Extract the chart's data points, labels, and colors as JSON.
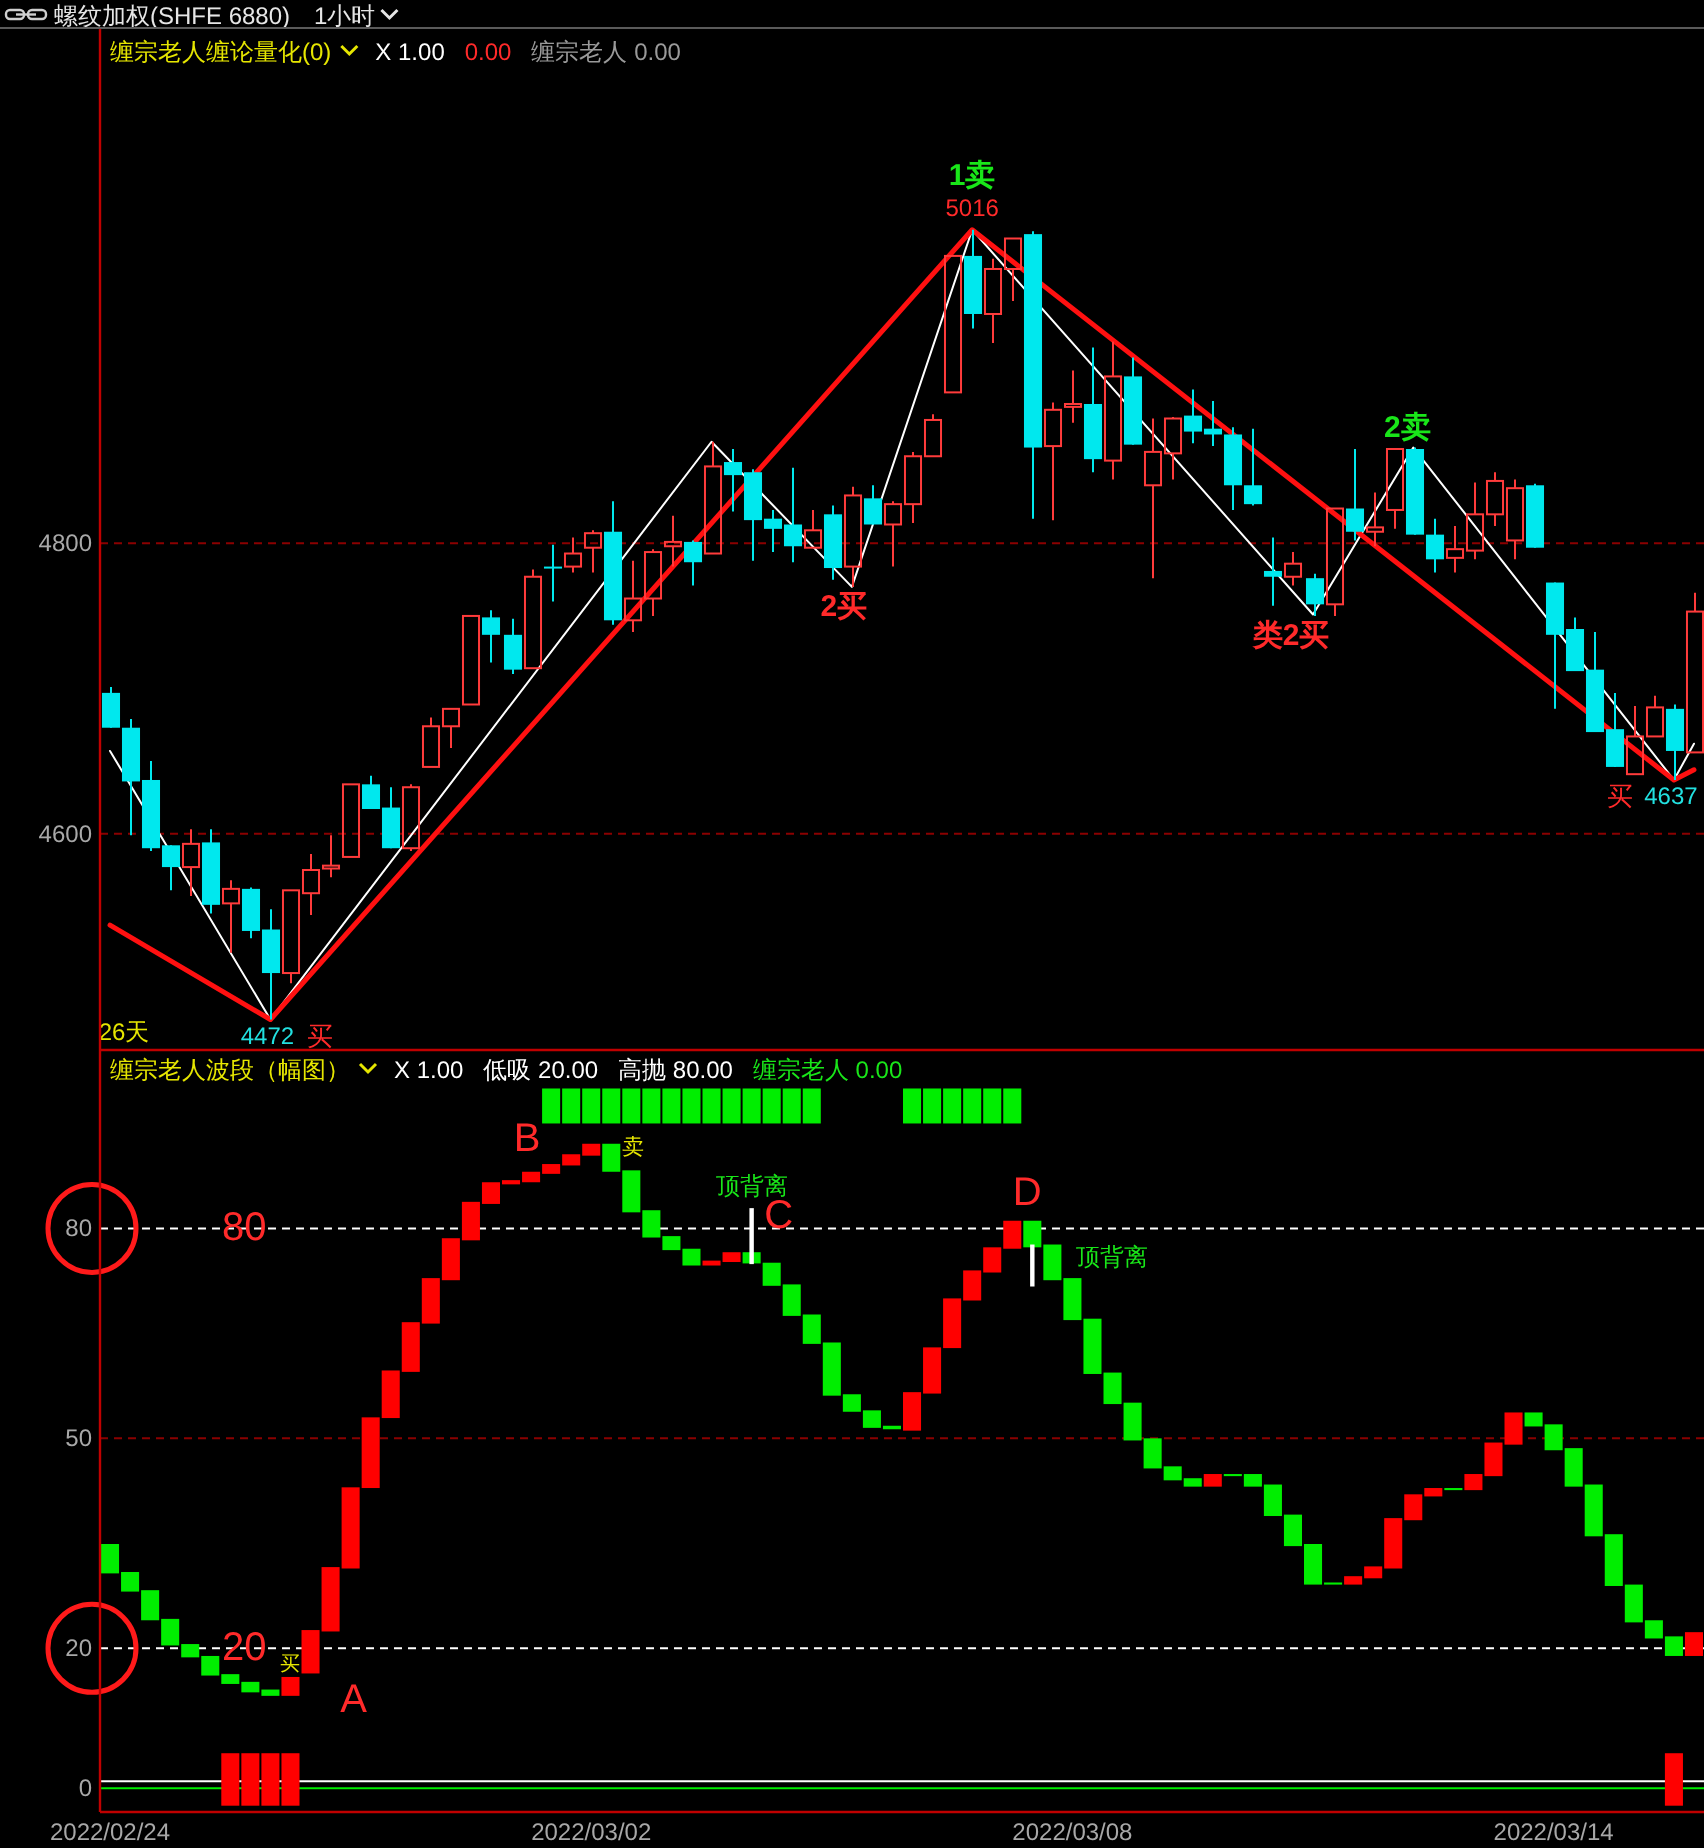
{
  "chart_data": [
    {
      "type": "candlestick",
      "title": "螺纹加权(SHFE 6880)",
      "subtitle": "1小时",
      "categories": [
        null,
        null,
        null,
        null,
        null,
        null,
        null,
        null,
        null,
        null,
        null,
        null,
        null,
        null,
        null,
        null,
        null,
        null,
        null,
        null,
        null,
        null,
        null,
        null,
        null,
        null,
        null,
        null,
        null,
        null,
        null,
        null,
        null,
        null,
        null,
        null,
        null,
        null,
        null,
        null,
        null,
        null,
        null,
        null,
        null,
        null,
        null,
        null,
        null,
        null,
        null,
        null,
        null,
        null,
        null,
        null,
        null,
        null,
        null,
        null,
        null,
        null,
        null,
        null,
        null,
        null,
        null,
        null,
        null,
        null,
        null,
        null,
        null,
        null,
        null,
        null,
        null,
        null,
        null,
        null
      ],
      "ohlc": [
        [
          4697,
          4701,
          4673,
          4673
        ],
        [
          4673,
          4679,
          4599,
          4636
        ],
        [
          4637,
          4650,
          4588,
          4590
        ],
        [
          4592,
          4592,
          4561,
          4577
        ],
        [
          4577,
          4603,
          4557,
          4593
        ],
        [
          4594,
          4603,
          4545,
          4551
        ],
        [
          4552,
          4568,
          4518,
          4562
        ],
        [
          4562,
          4563,
          4528,
          4533
        ],
        [
          4534,
          4548,
          4472,
          4504
        ],
        [
          4504,
          4561,
          4497,
          4561
        ],
        [
          4559,
          4586,
          4544,
          4575
        ],
        [
          4576,
          4599,
          4570,
          4578
        ],
        [
          4584,
          4634,
          4584,
          4634
        ],
        [
          4634,
          4640,
          4617,
          4617
        ],
        [
          4618,
          4632,
          4590,
          4590
        ],
        [
          4590,
          4634,
          4588,
          4632
        ],
        [
          4646,
          4680,
          4646,
          4674
        ],
        [
          4674,
          4686,
          4659,
          4686
        ],
        [
          4689,
          4750,
          4689,
          4750
        ],
        [
          4749,
          4754,
          4718,
          4737
        ],
        [
          4737,
          4748,
          4710,
          4713
        ],
        [
          4714,
          4782,
          4714,
          4777
        ],
        [
          4784,
          4799,
          4760,
          4783
        ],
        [
          4784,
          4804,
          4780,
          4793
        ],
        [
          4797,
          4809,
          4780,
          4807
        ],
        [
          4808,
          4829,
          4744,
          4747
        ],
        [
          4747,
          4788,
          4739,
          4762
        ],
        [
          4762,
          4796,
          4750,
          4794
        ],
        [
          4798,
          4819,
          4784,
          4801
        ],
        [
          4801,
          4802,
          4771,
          4787
        ],
        [
          4793,
          4870,
          4793,
          4853
        ],
        [
          4856,
          4865,
          4822,
          4847
        ],
        [
          4849,
          4851,
          4788,
          4816
        ],
        [
          4817,
          4823,
          4794,
          4810
        ],
        [
          4813,
          4852,
          4787,
          4798
        ],
        [
          4797,
          4823,
          4797,
          4809
        ],
        [
          4820,
          4826,
          4775,
          4783
        ],
        [
          4784,
          4839,
          4770,
          4833
        ],
        [
          4831,
          4840,
          4813,
          4813
        ],
        [
          4813,
          4829,
          4784,
          4827
        ],
        [
          4827,
          4863,
          4814,
          4860
        ],
        [
          4860,
          4889,
          4860,
          4885
        ],
        [
          4904,
          4998,
          4904,
          4998
        ],
        [
          4998,
          5016,
          4948,
          4958
        ],
        [
          4958,
          4996,
          4938,
          4989
        ],
        [
          4989,
          5010,
          4967,
          5010
        ],
        [
          5013,
          5015,
          4817,
          4866
        ],
        [
          4867,
          4897,
          4816,
          4892
        ],
        [
          4894,
          4919,
          4883,
          4896
        ],
        [
          4896,
          4935,
          4849,
          4858
        ],
        [
          4857,
          4939,
          4844,
          4915
        ],
        [
          4915,
          4928,
          4868,
          4868
        ],
        [
          4840,
          4886,
          4776,
          4863
        ],
        [
          4862,
          4887,
          4844,
          4886
        ],
        [
          4888,
          4906,
          4869,
          4877
        ],
        [
          4879,
          4898,
          4867,
          4875
        ],
        [
          4875,
          4880,
          4823,
          4840
        ],
        [
          4840,
          4879,
          4826,
          4827
        ],
        [
          4781,
          4804,
          4757,
          4777
        ],
        [
          4777,
          4794,
          4771,
          4786
        ],
        [
          4776,
          4779,
          4750,
          4758
        ],
        [
          4758,
          4824,
          4750,
          4824
        ],
        [
          4824,
          4865,
          4802,
          4808
        ],
        [
          4808,
          4835,
          4798,
          4811
        ],
        [
          4823,
          4865,
          4810,
          4865
        ],
        [
          4865,
          4866,
          4806,
          4806
        ],
        [
          4806,
          4817,
          4780,
          4789
        ],
        [
          4790,
          4812,
          4780,
          4796
        ],
        [
          4795,
          4842,
          4789,
          4820
        ],
        [
          4820,
          4849,
          4812,
          4843
        ],
        [
          4802,
          4844,
          4789,
          4838
        ],
        [
          4840,
          4841,
          4797,
          4797
        ],
        [
          4773,
          4773,
          4686,
          4737
        ],
        [
          4741,
          4749,
          4712,
          4712
        ],
        [
          4713,
          4739,
          4670,
          4670
        ],
        [
          4672,
          4697,
          4646,
          4646
        ],
        [
          4641,
          4688,
          4641,
          4667
        ],
        [
          4667,
          4695,
          4667,
          4687
        ],
        [
          4686,
          4689,
          4637,
          4657
        ],
        [
          4656,
          4766,
          4656,
          4753
        ]
      ],
      "colors": [
        "#00e8ee",
        "#00e8ee",
        "#00e8ee",
        "#00e8ee",
        "#ff3b3b",
        "#00e8ee",
        "#ff3b3b",
        "#00e8ee",
        "#00e8ee",
        "#ff3b3b",
        "#ff3b3b",
        "#ff3b3b",
        "#ff3b3b",
        "#00e8ee",
        "#00e8ee",
        "#ff3b3b",
        "#ff3b3b",
        "#ff3b3b",
        "#ff3b3b",
        "#00e8ee",
        "#00e8ee",
        "#ff3b3b",
        "#00e8ee",
        "#ff3b3b",
        "#ff3b3b",
        "#00e8ee",
        "#ff3b3b",
        "#ff3b3b",
        "#ff3b3b",
        "#00e8ee",
        "#ff3b3b",
        "#00e8ee",
        "#00e8ee",
        "#00e8ee",
        "#00e8ee",
        "#ff3b3b",
        "#00e8ee",
        "#ff3b3b",
        "#00e8ee",
        "#ff3b3b",
        "#ff3b3b",
        "#ff3b3b",
        "#ff3b3b",
        "#00e8ee",
        "#ff3b3b",
        "#ff3b3b",
        "#00e8ee",
        "#ff3b3b",
        "#ff3b3b",
        "#00e8ee",
        "#ff3b3b",
        "#00e8ee",
        "#ff3b3b",
        "#ff3b3b",
        "#00e8ee",
        "#00e8ee",
        "#00e8ee",
        "#00e8ee",
        "#00e8ee",
        "#ff3b3b",
        "#00e8ee",
        "#ff3b3b",
        "#00e8ee",
        "#ff3b3b",
        "#ff3b3b",
        "#00e8ee",
        "#00e8ee",
        "#ff3b3b",
        "#ff3b3b",
        "#ff3b3b",
        "#ff3b3b",
        "#00e8ee",
        "#00e8ee",
        "#00e8ee",
        "#00e8ee",
        "#00e8ee",
        "#ff3b3b",
        "#ff3b3b",
        "#00e8ee",
        "#ff3b3b"
      ],
      "series": [
        {
          "type": "line",
          "color": "#ffffff",
          "values": [
            4657,
            null,
            null,
            null,
            null,
            null,
            null,
            null,
            4472,
            null,
            null,
            null,
            null,
            null,
            null,
            null,
            null,
            null,
            null,
            null,
            null,
            null,
            null,
            null,
            null,
            null,
            null,
            null,
            null,
            null,
            4870,
            null,
            null,
            null,
            null,
            null,
            null,
            4770,
            null,
            null,
            null,
            null,
            null,
            5016,
            null,
            null,
            null,
            null,
            null,
            null,
            null,
            null,
            null,
            null,
            null,
            null,
            null,
            null,
            null,
            null,
            4751,
            null,
            null,
            null,
            null,
            4866,
            null,
            null,
            null,
            null,
            null,
            null,
            null,
            null,
            null,
            null,
            null,
            null,
            4637,
            4662
          ]
        },
        {
          "type": "line",
          "color": "#ff1010",
          "values": [
            4537,
            null,
            null,
            null,
            null,
            null,
            null,
            null,
            4472,
            null,
            null,
            null,
            null,
            null,
            null,
            null,
            null,
            null,
            null,
            null,
            null,
            null,
            null,
            null,
            null,
            null,
            null,
            null,
            null,
            null,
            null,
            null,
            null,
            null,
            null,
            null,
            null,
            null,
            null,
            null,
            null,
            null,
            null,
            5016,
            null,
            null,
            null,
            null,
            null,
            null,
            null,
            null,
            null,
            null,
            null,
            null,
            null,
            null,
            null,
            null,
            null,
            null,
            null,
            null,
            null,
            null,
            null,
            null,
            null,
            null,
            null,
            null,
            null,
            null,
            null,
            null,
            null,
            null,
            4637,
            4644
          ]
        }
      ],
      "ylim": [
        4451,
        5155
      ],
      "yticks": [
        4600,
        4800
      ],
      "grid": "y",
      "annotations": [
        "缠宗老人缠论量化(0)",
        "X 1.00",
        "0.00",
        "缠宗老人 0.00",
        "1卖",
        "5016",
        "2买",
        "类2买",
        "2卖",
        "4472",
        "买",
        "4637",
        "买",
        "26天"
      ]
    },
    {
      "type": "bar",
      "categories": [
        "2022/02/24",
        null,
        null,
        null,
        null,
        null,
        null,
        null,
        null,
        null,
        null,
        null,
        null,
        null,
        null,
        null,
        null,
        null,
        null,
        null,
        null,
        null,
        null,
        null,
        "2022/03/02",
        null,
        null,
        null,
        null,
        null,
        null,
        null,
        null,
        null,
        null,
        null,
        null,
        null,
        null,
        null,
        null,
        null,
        null,
        null,
        null,
        null,
        null,
        null,
        "2022/03/08",
        null,
        null,
        null,
        null,
        null,
        null,
        null,
        null,
        null,
        null,
        null,
        null,
        null,
        null,
        null,
        null,
        null,
        null,
        null,
        null,
        null,
        null,
        null,
        "2022/03/14",
        null,
        null,
        null,
        null,
        null,
        null,
        null
      ],
      "values": [
        4.2,
        2.8,
        4.3,
        3.8,
        1.9,
        2.8,
        1.4,
        1.5,
        0.9,
        2.7,
        6.2,
        9.2,
        11.6,
        10.1,
        6.8,
        7.1,
        6.5,
        6.0,
        5.5,
        3.1,
        0.6,
        1.5,
        1.4,
        1.6,
        1.7,
        4.0,
        6.0,
        3.9,
        2.0,
        2.4,
        0.7,
        1.4,
        1.6,
        3.3,
        4.5,
        4.2,
        7.6,
        2.5,
        2.5,
        0.5,
        5.5,
        6.6,
        7.1,
        4.3,
        3.6,
        4.0,
        3.8,
        5.1,
        6.0,
        7.9,
        4.5,
        5.4,
        4.3,
        2.0,
        1.2,
        1.8,
        0.3,
        1.8,
        4.5,
        4.5,
        5.8,
        0.3,
        1.2,
        1.7,
        7.2,
        3.7,
        1.2,
        0.3,
        2.3,
        4.8,
        4.6,
        2.0,
        3.7,
        5.5,
        7.4,
        7.4,
        5.4,
        2.6,
        2.8,
        3.4
      ],
      "base": [
        30.7,
        28.1,
        24.0,
        20.4,
        18.7,
        16.1,
        14.9,
        13.7,
        13.2,
        13.2,
        16.4,
        22.4,
        31.4,
        42.9,
        52.9,
        59.5,
        66.4,
        72.6,
        78.3,
        83.5,
        86.3,
        86.6,
        87.8,
        89.0,
        90.4,
        88.1,
        82.3,
        78.7,
        76.9,
        74.7,
        74.7,
        75.2,
        75.0,
        71.8,
        67.5,
        63.5,
        56.1,
        53.8,
        51.5,
        51.3,
        51.1,
        56.4,
        62.9,
        69.7,
        73.7,
        77.1,
        77.3,
        72.6,
        66.9,
        59.2,
        54.9,
        49.7,
        45.7,
        44.0,
        43.1,
        43.1,
        44.6,
        43.1,
        38.9,
        34.6,
        29.1,
        29.1,
        29.1,
        30.0,
        31.4,
        38.3,
        41.7,
        42.6,
        42.6,
        44.6,
        49.1,
        51.7,
        48.3,
        43.1,
        36.0,
        28.9,
        23.7,
        21.4,
        18.9,
        18.9
      ],
      "colors": [
        "#00ee00",
        "#00ee00",
        "#00ee00",
        "#00ee00",
        "#00ee00",
        "#00ee00",
        "#00ee00",
        "#00ee00",
        "#00ee00",
        "#ff0000",
        "#ff0000",
        "#ff0000",
        "#ff0000",
        "#ff0000",
        "#ff0000",
        "#ff0000",
        "#ff0000",
        "#ff0000",
        "#ff0000",
        "#ff0000",
        "#ff0000",
        "#ff0000",
        "#ff0000",
        "#ff0000",
        "#ff0000",
        "#00ee00",
        "#00ee00",
        "#00ee00",
        "#00ee00",
        "#00ee00",
        "#ff0000",
        "#ff0000",
        "#00ee00",
        "#00ee00",
        "#00ee00",
        "#00ee00",
        "#00ee00",
        "#00ee00",
        "#00ee00",
        "#00ee00",
        "#ff0000",
        "#ff0000",
        "#ff0000",
        "#ff0000",
        "#ff0000",
        "#ff0000",
        "#00ee00",
        "#00ee00",
        "#00ee00",
        "#00ee00",
        "#00ee00",
        "#00ee00",
        "#00ee00",
        "#00ee00",
        "#00ee00",
        "#ff0000",
        "#00ee00",
        "#00ee00",
        "#00ee00",
        "#00ee00",
        "#00ee00",
        "#00ee00",
        "#ff0000",
        "#ff0000",
        "#ff0000",
        "#ff0000",
        "#ff0000",
        "#00ee00",
        "#ff0000",
        "#ff0000",
        "#ff0000",
        "#00ee00",
        "#00ee00",
        "#00ee00",
        "#00ee00",
        "#00ee00",
        "#00ee00",
        "#00ee00",
        "#00ee00",
        "#ff0000"
      ],
      "series": [
        {
          "type": "bar",
          "color": "#00ee00",
          "values": [
            null,
            null,
            null,
            null,
            null,
            null,
            null,
            null,
            null,
            null,
            null,
            null,
            null,
            null,
            null,
            null,
            null,
            null,
            null,
            null,
            null,
            null,
            5,
            5,
            5,
            5,
            5,
            5,
            5,
            5,
            5,
            5,
            5,
            5,
            5,
            5,
            null,
            null,
            null,
            null,
            5,
            5,
            5,
            5,
            5,
            5,
            null,
            null,
            null,
            null,
            null,
            null,
            null,
            null,
            null,
            null,
            null,
            null,
            null,
            null,
            null,
            null,
            null,
            null,
            null,
            null,
            null,
            null,
            null,
            null,
            null,
            null,
            null,
            null,
            null,
            null,
            null,
            null,
            null,
            null
          ],
          "base": [
            null,
            null,
            null,
            null,
            null,
            null,
            null,
            null,
            null,
            null,
            null,
            null,
            null,
            null,
            null,
            null,
            null,
            null,
            null,
            null,
            null,
            null,
            95,
            95,
            95,
            95,
            95,
            95,
            95,
            95,
            95,
            95,
            95,
            95,
            95,
            95,
            null,
            null,
            null,
            null,
            95,
            95,
            95,
            95,
            95,
            95,
            null,
            null,
            null,
            null,
            null,
            null,
            null,
            null,
            null,
            null,
            null,
            null,
            null,
            null,
            null,
            null,
            null,
            null,
            null,
            null,
            null,
            null,
            null,
            null,
            null,
            null,
            null,
            null,
            null,
            null,
            null,
            null,
            null,
            null
          ]
        },
        {
          "type": "bar",
          "color": "#ff0000",
          "values": [
            null,
            null,
            null,
            null,
            null,
            null,
            7.5,
            7.5,
            7.5,
            7.5,
            null,
            null,
            null,
            null,
            null,
            null,
            null,
            null,
            null,
            null,
            null,
            null,
            null,
            null,
            null,
            null,
            null,
            null,
            null,
            null,
            null,
            null,
            null,
            null,
            null,
            null,
            null,
            null,
            null,
            null,
            null,
            null,
            null,
            null,
            null,
            null,
            null,
            null,
            null,
            null,
            null,
            null,
            null,
            null,
            null,
            null,
            null,
            null,
            null,
            null,
            null,
            null,
            null,
            null,
            null,
            null,
            null,
            null,
            null,
            null,
            null,
            null,
            null,
            null,
            null,
            null,
            null,
            null,
            7.5,
            null
          ],
          "base": [
            null,
            null,
            null,
            null,
            null,
            null,
            -2.5,
            -2.5,
            -2.5,
            -2.5,
            null,
            null,
            null,
            null,
            null,
            null,
            null,
            null,
            null,
            null,
            null,
            null,
            null,
            null,
            null,
            null,
            null,
            null,
            null,
            null,
            null,
            null,
            null,
            null,
            null,
            null,
            null,
            null,
            null,
            null,
            null,
            null,
            null,
            null,
            null,
            null,
            null,
            null,
            null,
            null,
            null,
            null,
            null,
            null,
            null,
            null,
            null,
            null,
            null,
            null,
            null,
            null,
            null,
            null,
            null,
            null,
            null,
            null,
            null,
            null,
            null,
            null,
            null,
            null,
            null,
            null,
            null,
            null,
            -2.5,
            null
          ]
        },
        {
          "type": "bar",
          "color": "#ffffff",
          "values": [
            null,
            null,
            null,
            null,
            null,
            null,
            null,
            null,
            null,
            null,
            null,
            null,
            null,
            null,
            null,
            null,
            null,
            null,
            null,
            null,
            null,
            null,
            null,
            null,
            null,
            null,
            null,
            null,
            null,
            null,
            null,
            null,
            8.0,
            null,
            null,
            null,
            null,
            null,
            null,
            null,
            null,
            null,
            null,
            null,
            null,
            null,
            6.0,
            null,
            null,
            null,
            null,
            null,
            null,
            null,
            null,
            null,
            null,
            null,
            null,
            null,
            null,
            null,
            null,
            null,
            null,
            null,
            null,
            null,
            null,
            null,
            null,
            null,
            null,
            null,
            null,
            null,
            null,
            null,
            null,
            null
          ],
          "base": [
            null,
            null,
            null,
            null,
            null,
            null,
            null,
            null,
            null,
            null,
            null,
            null,
            null,
            null,
            null,
            null,
            null,
            null,
            null,
            null,
            null,
            null,
            null,
            null,
            null,
            null,
            null,
            null,
            null,
            null,
            null,
            null,
            74.9,
            null,
            null,
            null,
            null,
            null,
            null,
            null,
            null,
            null,
            null,
            null,
            null,
            null,
            71.7,
            null,
            null,
            null,
            null,
            null,
            null,
            null,
            null,
            null,
            null,
            null,
            null,
            null,
            null,
            null,
            null,
            null,
            null,
            null,
            null,
            null,
            null,
            null,
            null,
            null,
            null,
            null,
            null,
            null,
            null,
            null,
            null,
            null
          ]
        }
      ],
      "ylim": [
        -3.4,
        105.5
      ],
      "yticks": [
        0,
        20,
        50,
        80
      ],
      "ref_lines": [
        {
          "axis": "y",
          "value": 80,
          "label": "80",
          "color": "#ffffff",
          "line_style": "dashed"
        },
        {
          "axis": "y",
          "value": 50,
          "color": "#8b0000",
          "line_style": "dashed"
        },
        {
          "axis": "y",
          "value": 20,
          "label": "20",
          "color": "#ffffff",
          "line_style": "dashed"
        },
        {
          "axis": "y",
          "value": 1,
          "color": "#ffffff",
          "line_style": "solid"
        },
        {
          "axis": "y",
          "value": 0,
          "color": "#00ee00",
          "line_style": "solid"
        }
      ],
      "annotations": [
        "缠宗老人波段（幅图）",
        "X 1.00",
        "低吸 20.00",
        "高抛 80.00",
        "缠宗老人 0.00",
        "A",
        "B",
        "C",
        "D",
        "买",
        "卖",
        "顶背离",
        "顶背离"
      ]
    }
  ]
}
